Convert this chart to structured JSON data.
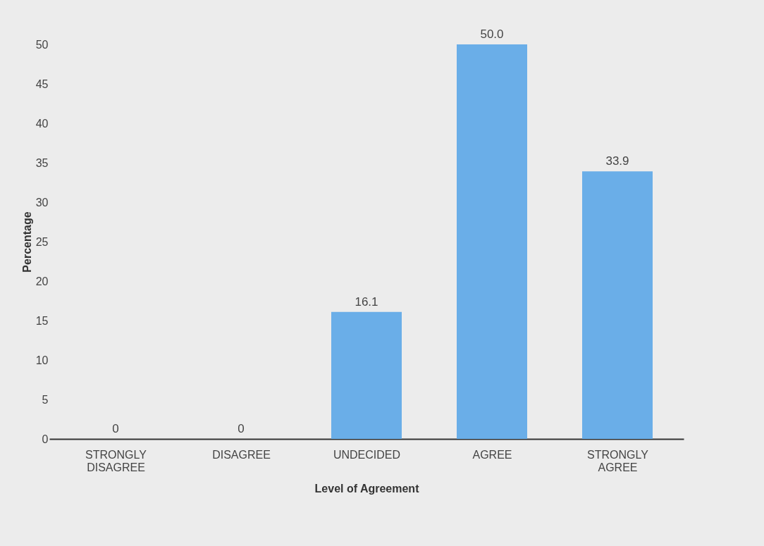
{
  "chart_data": {
    "type": "bar",
    "xlabel": "Level of Agreement",
    "ylabel": "Percentage",
    "categories": [
      "STRONGLY DISAGREE",
      "DISAGREE",
      "UNDECIDED",
      "AGREE",
      "STRONGLY AGREE"
    ],
    "values": [
      0,
      0,
      16.1,
      50.0,
      33.9
    ],
    "value_labels": [
      "0",
      "0",
      "16.1",
      "50.0",
      "33.9"
    ],
    "color": "#6aaee8",
    "ylim": [
      0,
      50
    ],
    "yticks": [
      0,
      5,
      10,
      15,
      20,
      25,
      30,
      35,
      40,
      45,
      50
    ],
    "grid": false
  }
}
